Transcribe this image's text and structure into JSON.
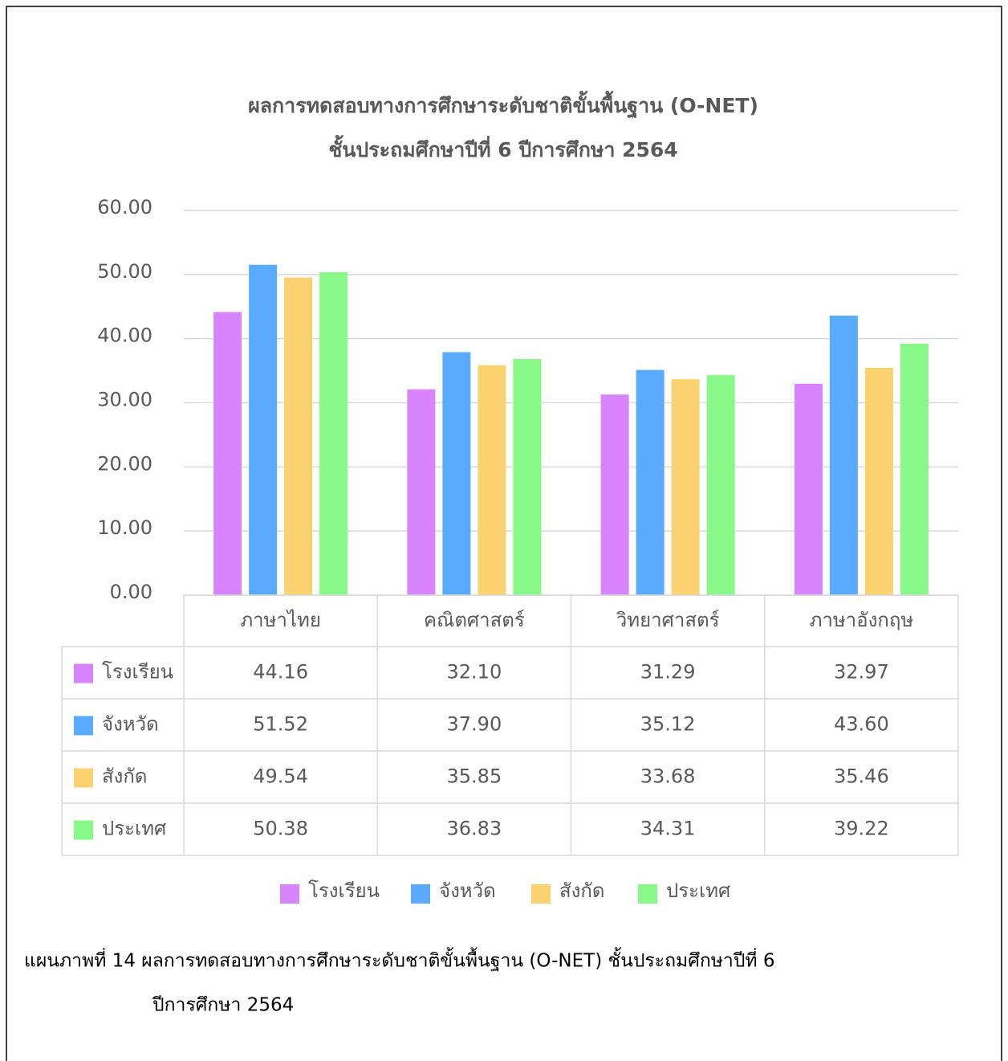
{
  "chart_data": {
    "type": "bar",
    "title": "ผลการทดสอบทางการศึกษาระดับชาติขั้นพื้นฐาน (O-NET)",
    "subtitle": "ชั้นประถมศึกษาปีที่ 6 ปีการศึกษา 2564",
    "categories": [
      "ภาษาไทย",
      "คณิตศาสตร์",
      "วิทยาศาสตร์",
      "ภาษาอังกฤษ"
    ],
    "series": [
      {
        "name": "โรงเรียน",
        "color": "#d884fc",
        "values": [
          44.16,
          32.1,
          31.29,
          32.97
        ],
        "value_labels": [
          "44.16",
          "32.10",
          "31.29",
          "32.97"
        ]
      },
      {
        "name": "จังหวัด",
        "color": "#5aabff",
        "values": [
          51.52,
          37.9,
          35.12,
          43.6
        ],
        "value_labels": [
          "51.52",
          "37.90",
          "35.12",
          "43.60"
        ]
      },
      {
        "name": "สังกัด",
        "color": "#fcd16f",
        "values": [
          49.54,
          35.85,
          33.68,
          35.46
        ],
        "value_labels": [
          "49.54",
          "35.85",
          "33.68",
          "35.46"
        ]
      },
      {
        "name": "ประเทศ",
        "color": "#88f988",
        "values": [
          50.38,
          36.83,
          34.31,
          39.22
        ],
        "value_labels": [
          "50.38",
          "36.83",
          "34.31",
          "39.22"
        ]
      }
    ],
    "ylim": [
      0,
      60
    ],
    "yticks": [
      {
        "value": 0,
        "label": "0.00"
      },
      {
        "value": 10,
        "label": "10.00"
      },
      {
        "value": 20,
        "label": "20.00"
      },
      {
        "value": 30,
        "label": "30.00"
      },
      {
        "value": 40,
        "label": "40.00"
      },
      {
        "value": 50,
        "label": "50.00"
      },
      {
        "value": 60,
        "label": "60.00"
      }
    ],
    "grid": true,
    "caption": [
      "แผนภาพที่ 14 ผลการทดสอบทางการศึกษาระดับชาติขั้นพื้นฐาน (O-NET) ชั้นประถมศึกษาปีที่ 6",
      "ปีการศึกษา 2564"
    ]
  }
}
